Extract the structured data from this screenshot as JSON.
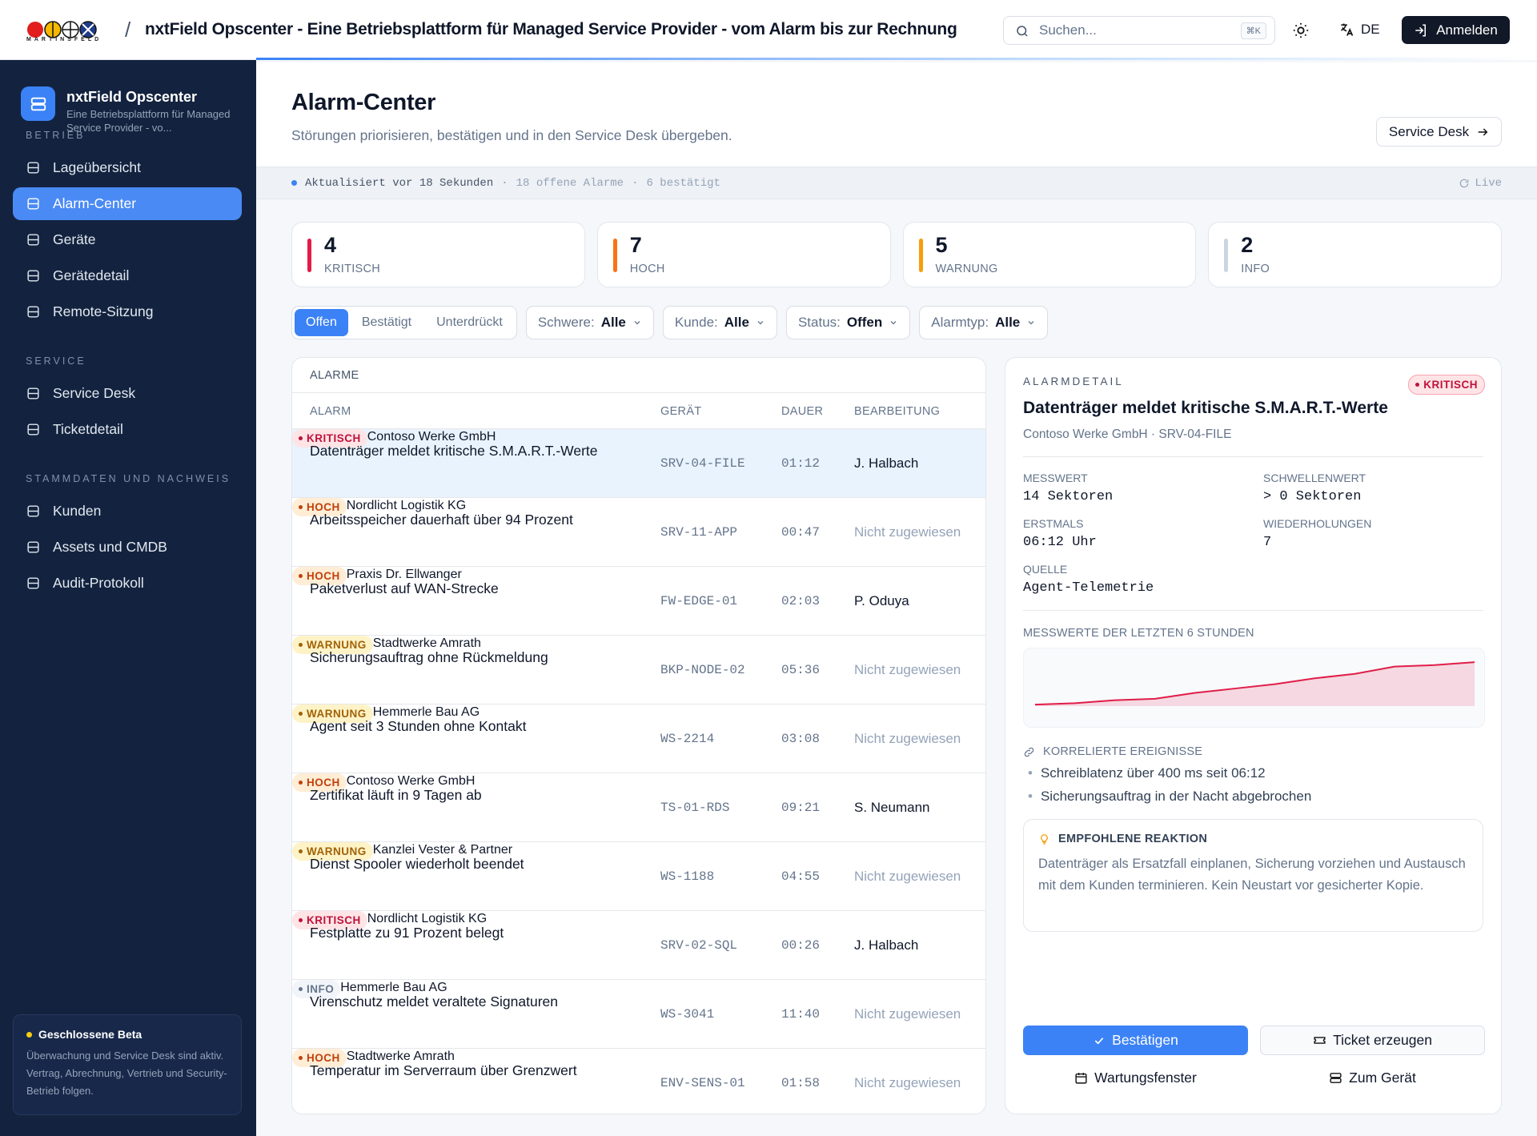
{
  "header": {
    "brand": "MARTINSFELD",
    "title": "nxtField Opscenter - Eine Betriebsplattform für Managed Service Provider - vom Alarm bis zur Rechnung",
    "search_placeholder": "Suchen...",
    "search_shortcut": "⌘K",
    "language": "DE",
    "login": "Anmelden"
  },
  "sidebar": {
    "app_name": "nxtField Opscenter",
    "app_subtitle": "Eine Betriebsplattform für Managed Service Provider - vo...",
    "sections": [
      {
        "title": "BETRIEB",
        "items": [
          {
            "label": "Lageübersicht"
          },
          {
            "label": "Alarm-Center",
            "active": true
          },
          {
            "label": "Geräte"
          },
          {
            "label": "Gerätedetail"
          },
          {
            "label": "Remote-Sitzung"
          }
        ]
      },
      {
        "title": "SERVICE",
        "items": [
          {
            "label": "Service Desk"
          },
          {
            "label": "Ticketdetail"
          }
        ]
      },
      {
        "title": "STAMMDATEN UND NACHWEIS",
        "items": [
          {
            "label": "Kunden"
          },
          {
            "label": "Assets und CMDB"
          },
          {
            "label": "Audit-Protokoll"
          }
        ]
      }
    ],
    "beta": {
      "title": "Geschlossene Beta",
      "text": "Überwachung und Service Desk sind aktiv. Vertrag, Abrechnung, Vertrieb und Security-Betrieb folgen."
    }
  },
  "page": {
    "title": "Alarm-Center",
    "subtitle": "Störungen priorisieren, bestätigen und in den Service Desk übergeben.",
    "service_desk_button": "Service Desk",
    "status": {
      "updated": "Aktualisiert vor 18 Sekunden",
      "open": "18 offene Alarme",
      "confirmed": "6 bestätigt",
      "live": "Live"
    }
  },
  "stats": [
    {
      "value": 4,
      "label": "KRITISCH",
      "color": "#e11d48",
      "bg": "#ffe4e6",
      "fg": "#be123c"
    },
    {
      "value": 7,
      "label": "HOCH",
      "color": "#f97316",
      "bg": "#ffedd5",
      "fg": "#c2410c"
    },
    {
      "value": 5,
      "label": "WARNUNG",
      "color": "#f59e0b",
      "bg": "#fef3c7",
      "fg": "#a16207"
    },
    {
      "value": 2,
      "label": "INFO",
      "color": "#cbd5e1",
      "bg": "#f1f5f9",
      "fg": "#64748b"
    }
  ],
  "tabs": [
    {
      "label": "Offen",
      "active": true
    },
    {
      "label": "Bestätigt"
    },
    {
      "label": "Unterdrückt"
    }
  ],
  "filters": [
    {
      "label": "Schwere:",
      "value": "Alle"
    },
    {
      "label": "Kunde:",
      "value": "Alle"
    },
    {
      "label": "Status:",
      "value": "Offen"
    },
    {
      "label": "Alarmtyp:",
      "value": "Alle"
    }
  ],
  "table": {
    "title": "ALARME",
    "columns": [
      "ALARM",
      "GERÄT",
      "DAUER",
      "BEARBEITUNG"
    ],
    "rows": [
      {
        "alarm": "Datenträger meldet kritische S.M.A.R.T.-Werte",
        "severity": "KRITISCH",
        "customer": "Contoso Werke GmbH",
        "device": "SRV-04-FILE",
        "duration": "01:12",
        "assignee": "J. Halbach",
        "assigned": true,
        "selected": true
      },
      {
        "alarm": "Arbeitsspeicher dauerhaft über 94 Prozent",
        "severity": "HOCH",
        "customer": "Nordlicht Logistik KG",
        "device": "SRV-11-APP",
        "duration": "00:47",
        "assignee": "Nicht zugewiesen",
        "assigned": false
      },
      {
        "alarm": "Paketverlust auf WAN-Strecke",
        "severity": "HOCH",
        "customer": "Praxis Dr. Ellwanger",
        "device": "FW-EDGE-01",
        "duration": "02:03",
        "assignee": "P. Oduya",
        "assigned": true
      },
      {
        "alarm": "Sicherungsauftrag ohne Rückmeldung",
        "severity": "WARNUNG",
        "customer": "Stadtwerke Amrath",
        "device": "BKP-NODE-02",
        "duration": "05:36",
        "assignee": "Nicht zugewiesen",
        "assigned": false
      },
      {
        "alarm": "Agent seit 3 Stunden ohne Kontakt",
        "severity": "WARNUNG",
        "customer": "Hemmerle Bau AG",
        "device": "WS-2214",
        "duration": "03:08",
        "assignee": "Nicht zugewiesen",
        "assigned": false
      },
      {
        "alarm": "Zertifikat läuft in 9 Tagen ab",
        "severity": "HOCH",
        "customer": "Contoso Werke GmbH",
        "device": "TS-01-RDS",
        "duration": "09:21",
        "assignee": "S. Neumann",
        "assigned": true
      },
      {
        "alarm": "Dienst Spooler wiederholt beendet",
        "severity": "WARNUNG",
        "customer": "Kanzlei Vester & Partner",
        "device": "WS-1188",
        "duration": "04:55",
        "assignee": "Nicht zugewiesen",
        "assigned": false
      },
      {
        "alarm": "Festplatte zu 91 Prozent belegt",
        "severity": "KRITISCH",
        "customer": "Nordlicht Logistik KG",
        "device": "SRV-02-SQL",
        "duration": "00:26",
        "assignee": "J. Halbach",
        "assigned": true
      },
      {
        "alarm": "Virenschutz meldet veraltete Signaturen",
        "severity": "INFO",
        "customer": "Hemmerle Bau AG",
        "device": "WS-3041",
        "duration": "11:40",
        "assignee": "Nicht zugewiesen",
        "assigned": false
      },
      {
        "alarm": "Temperatur im Serverraum über Grenzwert",
        "severity": "HOCH",
        "customer": "Stadtwerke Amrath",
        "device": "ENV-SENS-01",
        "duration": "01:58",
        "assignee": "Nicht zugewiesen",
        "assigned": false
      }
    ]
  },
  "detail": {
    "label": "ALARMDETAIL",
    "severity": "KRITISCH",
    "title": "Datenträger meldet kritische S.M.A.R.T.-Werte",
    "subtitle": "Contoso Werke GmbH · SRV-04-FILE",
    "metrics": [
      {
        "label": "MESSWERT",
        "value": "14 Sektoren"
      },
      {
        "label": "SCHWELLENWERT",
        "value": "> 0 Sektoren"
      },
      {
        "label": "ERSTMALS",
        "value": "06:12 Uhr"
      },
      {
        "label": "WIEDERHOLUNGEN",
        "value": "7"
      },
      {
        "label": "QUELLE",
        "value": "Agent-Telemetrie"
      }
    ],
    "chart": {
      "title": "MESSWERTE DER LETZTEN 6 STUNDEN",
      "values": [
        2,
        4,
        8,
        10,
        18,
        24,
        30,
        38,
        44,
        54,
        56,
        60
      ],
      "ylim": [
        0,
        70
      ],
      "color": "#e11d48"
    },
    "correlated_title": "KORRELIERTE EREIGNISSE",
    "correlated": [
      "Schreiblatenz über 400 ms seit 06:12",
      "Sicherungsauftrag in der Nacht abgebrochen"
    ],
    "recommendation": {
      "title": "EMPFOHLENE REAKTION",
      "text": "Datenträger als Ersatzfall einplanen, Sicherung vorziehen und Austausch mit dem Kunden terminieren. Kein Neustart vor gesicherter Kopie."
    },
    "actions": {
      "confirm": "Bestätigen",
      "ticket": "Ticket erzeugen",
      "maintenance": "Wartungsfenster",
      "device": "Zum Gerät"
    }
  }
}
